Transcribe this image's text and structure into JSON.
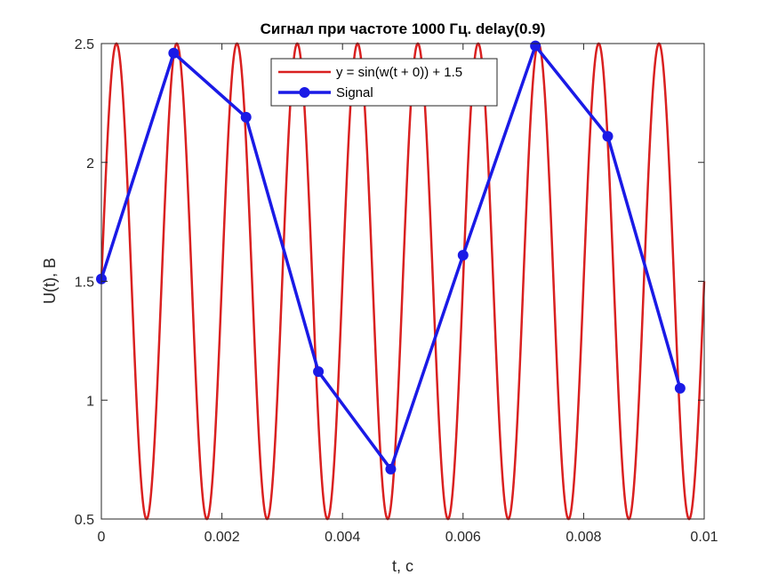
{
  "chart_data": {
    "type": "line",
    "title": "Сигнал при частоте 1000 Гц. delay(0.9)",
    "xlabel": "t, c",
    "ylabel": "U(t), B",
    "xlim": [
      0,
      0.01
    ],
    "ylim": [
      0.5,
      2.5
    ],
    "xticks": [
      "0",
      "0.002",
      "0.004",
      "0.006",
      "0.008",
      "0.01"
    ],
    "xtick_values": [
      0,
      0.002,
      0.004,
      0.006,
      0.008,
      0.01
    ],
    "yticks": [
      "0.5",
      "1",
      "1.5",
      "2",
      "2.5"
    ],
    "ytick_values": [
      0.5,
      1,
      1.5,
      2,
      2.5
    ],
    "grid": false,
    "legend_position": "top-center",
    "series": [
      {
        "name": "y = sin(w(t + 0)) + 1.5",
        "function": "sin(w*t) + 1.5",
        "frequency_hz": 1000,
        "color": "#d92020"
      },
      {
        "name": "Signal",
        "color": "#1a1ae6",
        "marker": "circle",
        "x": [
          0,
          0.0012,
          0.0024,
          0.0036,
          0.0048,
          0.006,
          0.0072,
          0.0084,
          0.0096
        ],
        "y": [
          1.51,
          2.46,
          2.19,
          1.12,
          0.71,
          1.61,
          2.49,
          2.11,
          1.05
        ]
      }
    ]
  }
}
